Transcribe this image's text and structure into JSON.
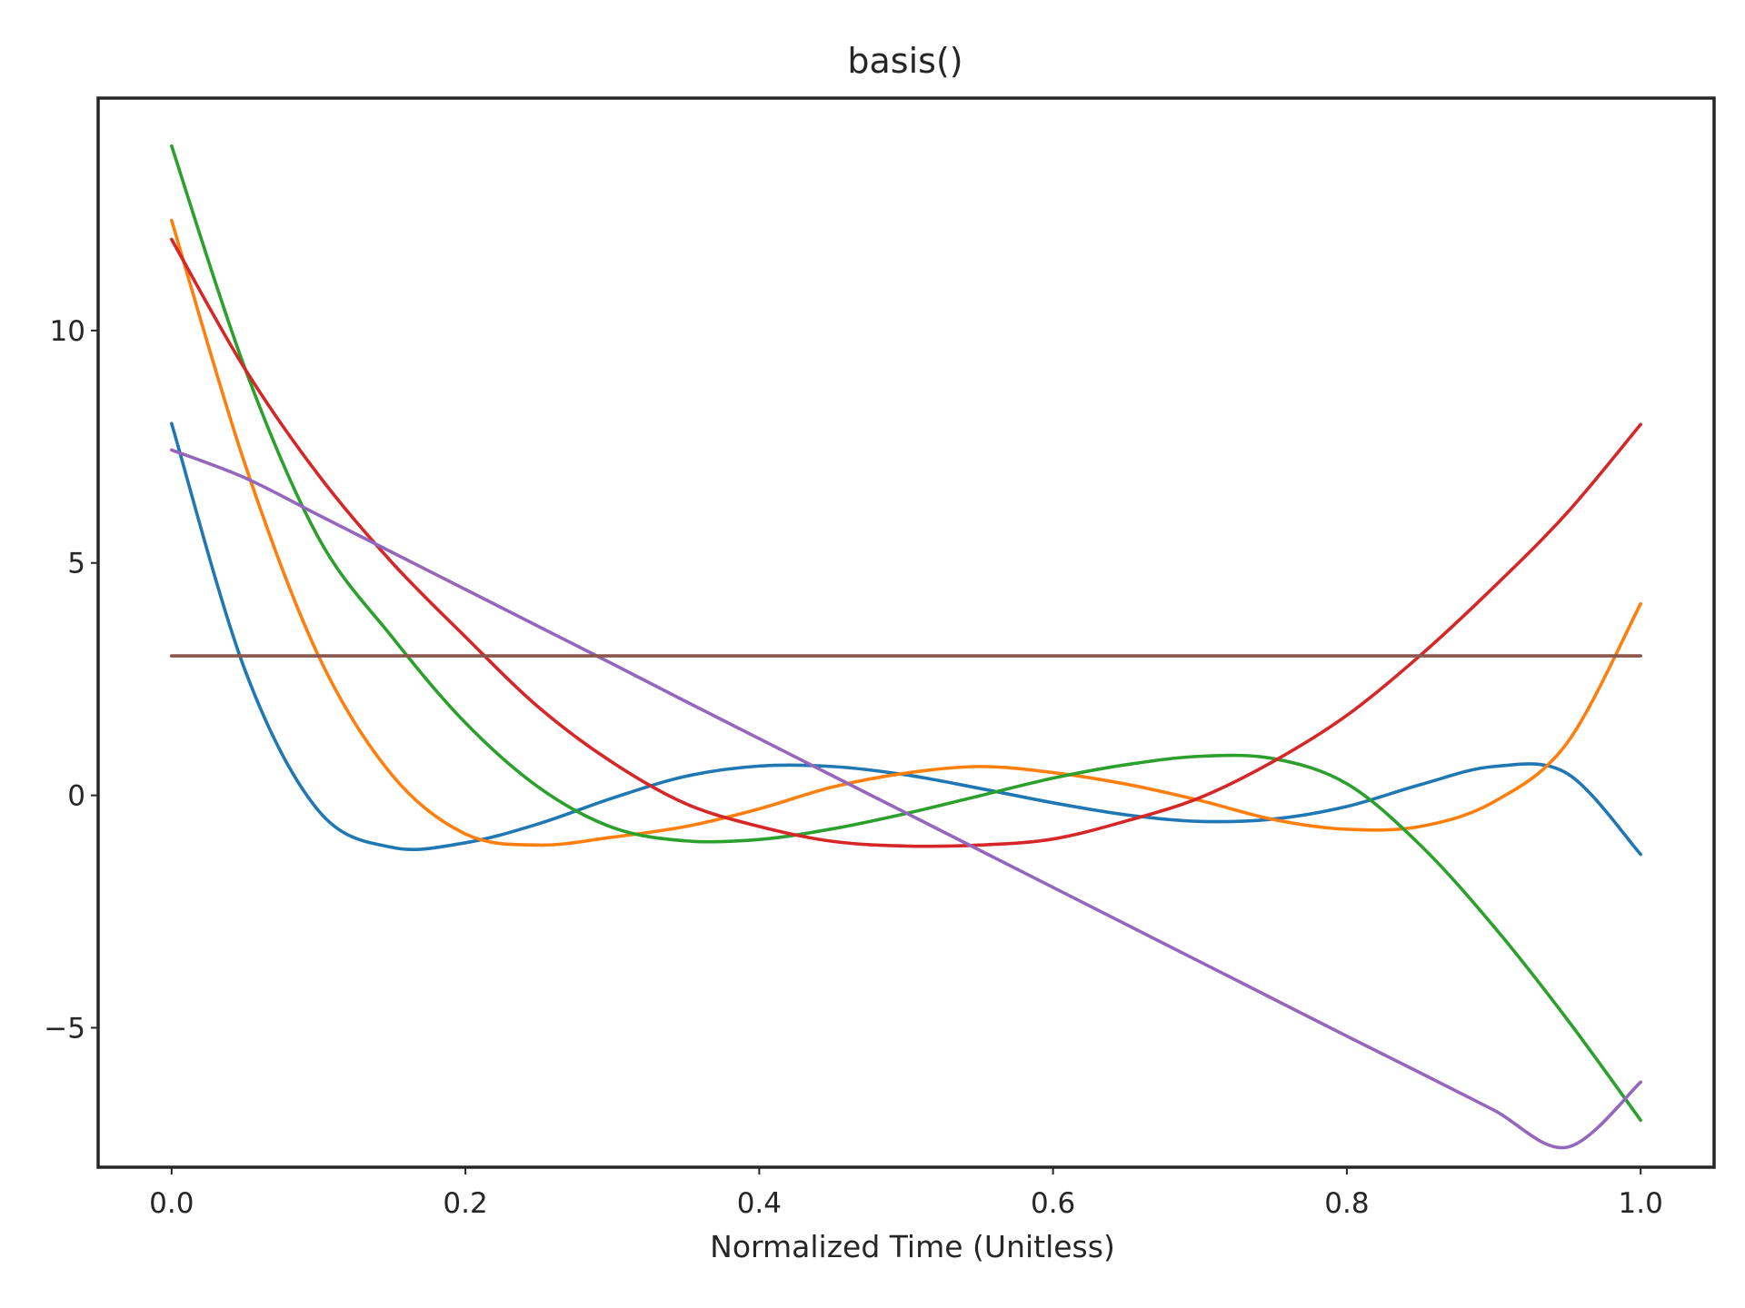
{
  "chart_data": {
    "type": "line",
    "title": "basis()",
    "xlabel": "Normalized Time (Unitless)",
    "ylabel": "",
    "xlim": [
      -0.05,
      1.05
    ],
    "ylim": [
      -8.0,
      15.0
    ],
    "grid": false,
    "legend": "none",
    "x_ticks": [
      0.0,
      0.2,
      0.4,
      0.6,
      0.8,
      1.0
    ],
    "x_tick_labels": [
      "0.0",
      "0.2",
      "0.4",
      "0.6",
      "0.8",
      "1.0"
    ],
    "y_ticks": [
      -5,
      0,
      5,
      10
    ],
    "y_tick_labels": [
      "−5",
      "0",
      "5",
      "10"
    ],
    "x": [
      0.0,
      0.05,
      0.1,
      0.15,
      0.2,
      0.25,
      0.3,
      0.35,
      0.4,
      0.45,
      0.5,
      0.55,
      0.6,
      0.65,
      0.7,
      0.75,
      0.8,
      0.85,
      0.9,
      0.95,
      1.0
    ],
    "series": [
      {
        "color": "#1f77b4",
        "values": [
          8.0,
          2.69,
          -0.33,
          -1.12,
          -1.02,
          -0.61,
          -0.06,
          0.41,
          0.63,
          0.62,
          0.44,
          0.15,
          -0.16,
          -0.42,
          -0.56,
          -0.51,
          -0.24,
          0.23,
          0.62,
          0.47,
          -1.27
        ]
      },
      {
        "color": "#ff7f0e",
        "values": [
          12.37,
          7.12,
          3.0,
          0.44,
          -0.83,
          -1.07,
          -0.9,
          -0.67,
          -0.29,
          0.18,
          0.48,
          0.62,
          0.49,
          0.24,
          -0.11,
          -0.52,
          -0.73,
          -0.67,
          -0.14,
          1.13,
          4.12
        ]
      },
      {
        "color": "#2ca02c",
        "values": [
          13.97,
          9.18,
          5.54,
          3.41,
          1.56,
          0.17,
          -0.69,
          -0.98,
          -0.95,
          -0.72,
          -0.39,
          -0.01,
          0.37,
          0.66,
          0.84,
          0.79,
          0.25,
          -1.07,
          -2.82,
          -4.82,
          -6.99
        ]
      },
      {
        "color": "#d62728",
        "values": [
          11.96,
          9.17,
          6.89,
          5.01,
          3.41,
          1.89,
          0.71,
          -0.18,
          -0.67,
          -0.99,
          -1.09,
          -1.07,
          -0.94,
          -0.55,
          -0.05,
          0.73,
          1.72,
          3.01,
          4.48,
          6.08,
          7.98
        ]
      },
      {
        "color": "#9467bd",
        "values": [
          7.43,
          6.83,
          6.03,
          5.23,
          4.43,
          3.63,
          2.83,
          2.02,
          1.22,
          0.42,
          -0.38,
          -1.18,
          -1.98,
          -2.78,
          -3.58,
          -4.38,
          -5.18,
          -5.97,
          -6.77,
          -7.57,
          -6.17
        ]
      },
      {
        "color": "#8c564b",
        "values": [
          3.0,
          3.0,
          3.0,
          3.0,
          3.0,
          3.0,
          3.0,
          3.0,
          3.0,
          3.0,
          3.0,
          3.0,
          3.0,
          3.0,
          3.0,
          3.0,
          3.0,
          3.0,
          3.0,
          3.0,
          3.0
        ]
      }
    ]
  }
}
